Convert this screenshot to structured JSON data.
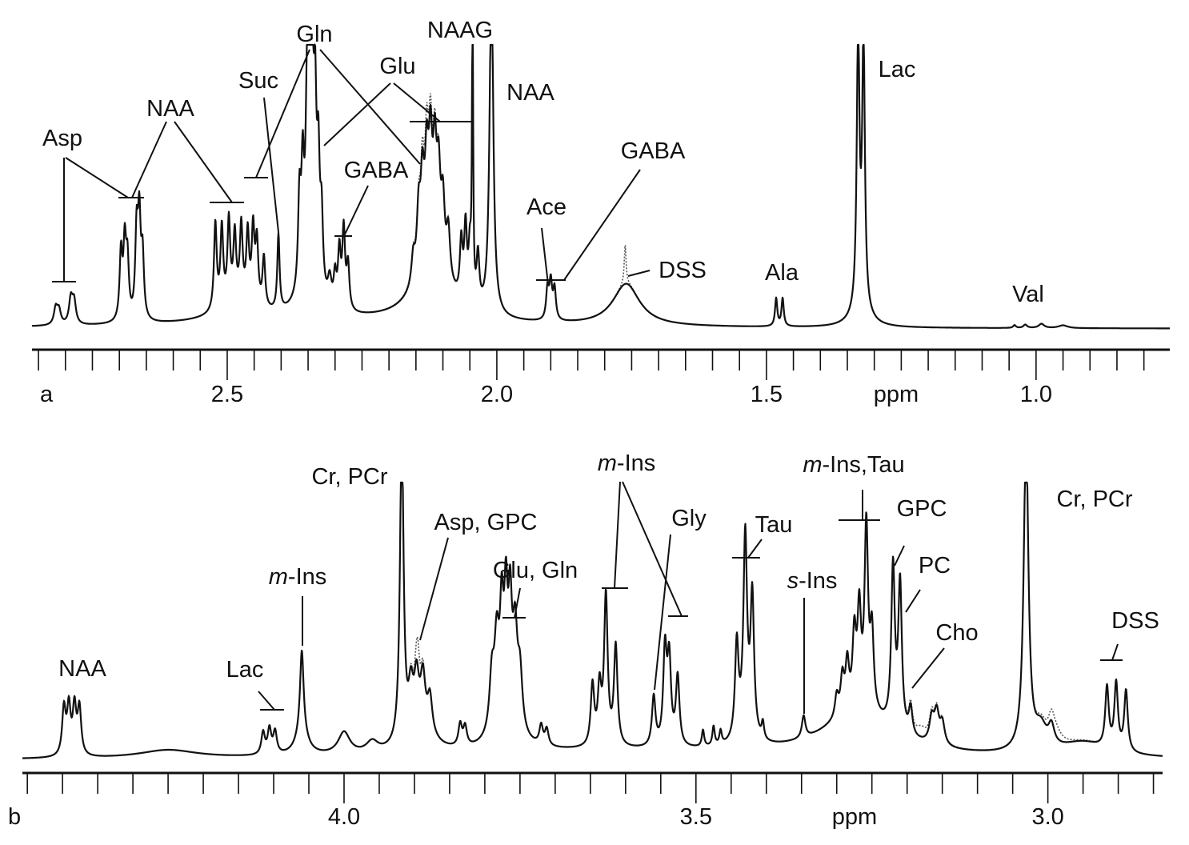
{
  "chart_data": [
    {
      "panel": "a",
      "type": "line",
      "xlabel": "ppm",
      "xlim": [
        2.862,
        0.752
      ],
      "major_ticks": [
        2.5,
        2.0,
        1.5,
        1.0
      ],
      "minor_tick_step": 0.05,
      "tick_labels": [
        "2.5",
        "2.0",
        "1.5",
        "1.0"
      ],
      "series": [
        {
          "name": "spectrum (solid)",
          "peaks_ppm_height_hwhm": [
            [
              2.818,
              6,
              0.004
            ],
            [
              2.812,
              5,
              0.004
            ],
            [
              2.79,
              9,
              0.004
            ],
            [
              2.784,
              8,
              0.004
            ],
            [
              2.697,
              24,
              0.003
            ],
            [
              2.69,
              26,
              0.003
            ],
            [
              2.685,
              20,
              0.003
            ],
            [
              2.668,
              30,
              0.003
            ],
            [
              2.663,
              34,
              0.003
            ],
            [
              2.657,
              22,
              0.003
            ],
            [
              2.522,
              31,
              0.003
            ],
            [
              2.51,
              28,
              0.003
            ],
            [
              2.497,
              29,
              0.003
            ],
            [
              2.486,
              23,
              0.003
            ],
            [
              2.474,
              26,
              0.003
            ],
            [
              2.462,
              24,
              0.003
            ],
            [
              2.452,
              26,
              0.003
            ],
            [
              2.445,
              22,
              0.003
            ],
            [
              2.432,
              18,
              0.003
            ],
            [
              2.48,
              7,
              0.04
            ],
            [
              2.405,
              27,
              0.0025
            ],
            [
              2.366,
              32,
              0.003
            ],
            [
              2.36,
              38,
              0.003
            ],
            [
              2.352,
              52,
              0.003
            ],
            [
              2.347,
              82,
              0.003
            ],
            [
              2.343,
              76,
              0.003
            ],
            [
              2.337,
              56,
              0.003
            ],
            [
              2.331,
              42,
              0.003
            ],
            [
              2.325,
              26,
              0.003
            ],
            [
              2.35,
              10,
              0.02
            ],
            [
              2.31,
              9,
              0.004
            ],
            [
              2.3,
              11,
              0.003
            ],
            [
              2.292,
              20,
              0.003
            ],
            [
              2.284,
              28,
              0.003
            ],
            [
              2.276,
              16,
              0.003
            ],
            [
              2.12,
              18,
              0.04
            ],
            [
              2.155,
              10,
              0.004
            ],
            [
              2.145,
              22,
              0.004
            ],
            [
              2.138,
              30,
              0.004
            ],
            [
              2.13,
              34,
              0.004
            ],
            [
              2.123,
              38,
              0.004
            ],
            [
              2.115,
              36,
              0.004
            ],
            [
              2.108,
              30,
              0.004
            ],
            [
              2.1,
              24,
              0.004
            ],
            [
              2.09,
              18,
              0.004
            ],
            [
              2.066,
              20,
              0.003
            ],
            [
              2.058,
              26,
              0.003
            ],
            [
              2.05,
              18,
              0.003
            ],
            [
              2.045,
              115,
              0.0012
            ],
            [
              2.035,
              18,
              0.003
            ],
            [
              2.01,
              125,
              0.004
            ],
            [
              1.906,
              11,
              0.003
            ],
            [
              1.9,
              13,
              0.003
            ],
            [
              1.893,
              11,
              0.003
            ],
            [
              1.76,
              15,
              0.03
            ],
            [
              1.482,
              10,
              0.0025
            ],
            [
              1.47,
              10,
              0.0025
            ],
            [
              1.33,
              100,
              0.003
            ],
            [
              1.32,
              96,
              0.003
            ],
            [
              1.325,
              5,
              0.02
            ],
            [
              1.04,
              1,
              0.003
            ],
            [
              1.02,
              1.2,
              0.004
            ],
            [
              0.99,
              1.5,
              0.006
            ],
            [
              0.95,
              1,
              0.01
            ],
            [
              2.3,
              2.5,
              0.35
            ]
          ]
        },
        {
          "name": "overlay (dotted)",
          "extra_peaks_ppm_height_hwhm": [
            [
              1.762,
              14,
              0.002
            ],
            [
              2.13,
              6,
              0.01
            ]
          ]
        }
      ],
      "panel_label": "a",
      "annotations": [
        {
          "text": "Asp",
          "ppm": 2.8
        },
        {
          "text": "NAA",
          "ppm": 2.68
        },
        {
          "text": "Suc",
          "ppm": 2.405
        },
        {
          "text": "Gln",
          "ppm": 2.36
        },
        {
          "text": "Glu",
          "ppm": 2.14
        },
        {
          "text": "NAAG",
          "ppm": 2.045
        },
        {
          "text": "NAA",
          "ppm": 2.01
        },
        {
          "text": "GABA",
          "ppm": 2.28
        },
        {
          "text": "GABA",
          "ppm": 1.89
        },
        {
          "text": "Ace",
          "ppm": 1.9
        },
        {
          "text": "DSS",
          "ppm": 1.76
        },
        {
          "text": "Ala",
          "ppm": 1.47
        },
        {
          "text": "Lac",
          "ppm": 1.32
        },
        {
          "text": "Val",
          "ppm": 1.0
        }
      ]
    },
    {
      "panel": "b",
      "type": "line",
      "xlabel": "ppm",
      "xlim": [
        4.457,
        2.837
      ],
      "major_ticks": [
        4.0,
        3.5,
        3.0
      ],
      "minor_tick_step": 0.05,
      "tick_labels": [
        "4.0",
        "3.5",
        "3.0"
      ],
      "series": [
        {
          "name": "spectrum (solid)",
          "peaks_ppm_height_hwhm": [
            [
              4.398,
              17,
              0.003
            ],
            [
              4.391,
              17,
              0.003
            ],
            [
              4.383,
              17,
              0.003
            ],
            [
              4.376,
              17,
              0.003
            ],
            [
              4.25,
              3,
              0.05
            ],
            [
              4.115,
              8,
              0.003
            ],
            [
              4.106,
              9,
              0.003
            ],
            [
              4.098,
              8,
              0.003
            ],
            [
              4.06,
              30,
              0.003
            ],
            [
              4.06,
              8,
              0.01
            ],
            [
              4.0,
              8,
              0.01
            ],
            [
              3.96,
              4,
              0.01
            ],
            [
              3.918,
              115,
              0.003
            ],
            [
              3.905,
              16,
              0.004
            ],
            [
              3.897,
              18,
              0.004
            ],
            [
              3.888,
              18,
              0.004
            ],
            [
              3.878,
              13,
              0.004
            ],
            [
              3.89,
              8,
              0.02
            ],
            [
              3.835,
              8,
              0.003
            ],
            [
              3.828,
              7,
              0.003
            ],
            [
              3.79,
              20,
              0.004
            ],
            [
              3.783,
              30,
              0.004
            ],
            [
              3.776,
              36,
              0.003
            ],
            [
              3.77,
              40,
              0.003
            ],
            [
              3.764,
              38,
              0.003
            ],
            [
              3.757,
              33,
              0.004
            ],
            [
              3.75,
              20,
              0.004
            ],
            [
              3.77,
              9,
              0.02
            ],
            [
              3.72,
              7,
              0.003
            ],
            [
              3.712,
              6,
              0.003
            ],
            [
              3.647,
              22,
              0.003
            ],
            [
              3.637,
              20,
              0.003
            ],
            [
              3.628,
              54,
              0.003
            ],
            [
              3.614,
              36,
              0.003
            ],
            [
              3.56,
              18,
              0.003
            ],
            [
              3.544,
              34,
              0.003
            ],
            [
              3.538,
              30,
              0.003
            ],
            [
              3.526,
              25,
              0.003
            ],
            [
              3.49,
              6,
              0.002
            ],
            [
              3.475,
              7,
              0.002
            ],
            [
              3.465,
              5,
              0.002
            ],
            [
              3.442,
              34,
              0.003
            ],
            [
              3.43,
              68,
              0.003
            ],
            [
              3.42,
              50,
              0.003
            ],
            [
              3.43,
              7,
              0.01
            ],
            [
              3.405,
              6,
              0.002
            ],
            [
              3.347,
              8,
              0.003
            ],
            [
              3.27,
              15,
              0.06
            ],
            [
              3.3,
              8,
              0.003
            ],
            [
              3.292,
              13,
              0.003
            ],
            [
              3.285,
              17,
              0.003
            ],
            [
              3.275,
              26,
              0.003
            ],
            [
              3.268,
              34,
              0.003
            ],
            [
              3.258,
              66,
              0.003
            ],
            [
              3.25,
              28,
              0.003
            ],
            [
              3.22,
              58,
              0.003
            ],
            [
              3.21,
              53,
              0.003
            ],
            [
              3.195,
              10,
              0.003
            ],
            [
              3.165,
              9,
              0.004
            ],
            [
              3.158,
              11,
              0.004
            ],
            [
              3.15,
              8,
              0.004
            ],
            [
              3.031,
              115,
              0.004
            ],
            [
              3.01,
              8,
              0.01
            ],
            [
              2.995,
              7,
              0.005
            ],
            [
              2.916,
              22,
              0.003
            ],
            [
              2.903,
              24,
              0.003
            ],
            [
              2.889,
              22,
              0.003
            ],
            [
              2.95,
              5,
              0.04
            ],
            [
              3.6,
              3,
              0.3
            ]
          ]
        },
        {
          "name": "overlay (dotted)",
          "extra_peaks_ppm_height_hwhm": [
            [
              3.895,
              10,
              0.003
            ],
            [
              2.99,
              5,
              0.01
            ],
            [
              3.18,
              4,
              0.01
            ]
          ]
        }
      ],
      "panel_label": "b",
      "annotations": [
        {
          "text": "NAA",
          "ppm": 4.39
        },
        {
          "text": "Lac",
          "ppm": 4.1
        },
        {
          "text": "m-Ins",
          "ppm": 4.06
        },
        {
          "text": "Cr, PCr",
          "ppm": 3.92
        },
        {
          "text": "Asp, GPC",
          "ppm": 3.89
        },
        {
          "text": "Glu, Gln",
          "ppm": 3.77
        },
        {
          "text": "m-Ins",
          "ppm": 3.62
        },
        {
          "text": "Gly",
          "ppm": 3.56
        },
        {
          "text": "Tau",
          "ppm": 3.43
        },
        {
          "text": "m-Ins,Tau",
          "ppm": 3.26
        },
        {
          "text": "s-Ins",
          "ppm": 3.347
        },
        {
          "text": "GPC",
          "ppm": 3.22
        },
        {
          "text": "PC",
          "ppm": 3.21
        },
        {
          "text": "Cho",
          "ppm": 3.19
        },
        {
          "text": "Cr, PCr",
          "ppm": 3.03
        },
        {
          "text": "DSS",
          "ppm": 2.9
        }
      ]
    }
  ]
}
